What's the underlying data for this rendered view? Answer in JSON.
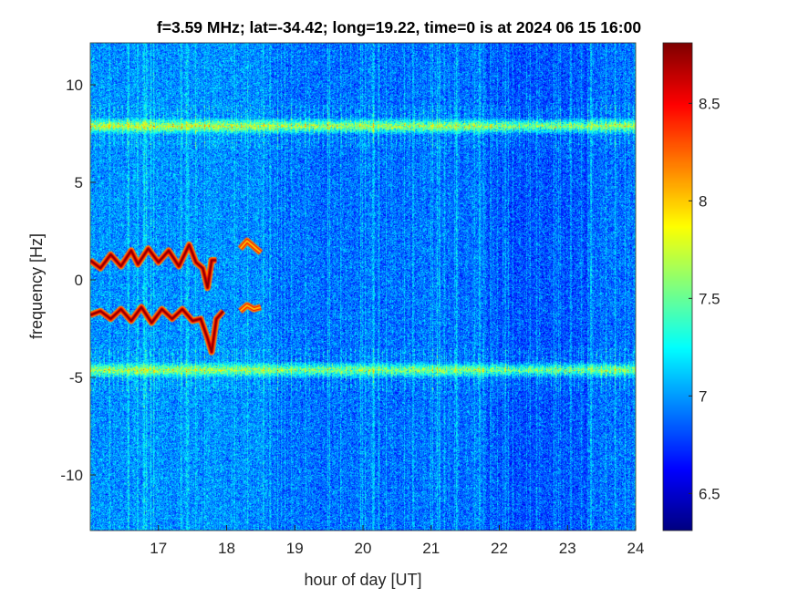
{
  "chart_data": {
    "type": "heatmap",
    "title": "f=3.59 MHz;  lat=-34.42; long=19.22, time=0 is at 2024 06 15 16:00",
    "xlabel": "hour of day [UT]",
    "ylabel": "frequency [Hz]",
    "xlim": [
      16,
      24
    ],
    "ylim": [
      -12.85,
      12.15
    ],
    "xticks": [
      17,
      18,
      19,
      20,
      21,
      22,
      23,
      24
    ],
    "yticks": [
      -10,
      -5,
      0,
      5,
      10
    ],
    "colorbar": {
      "clim": [
        6.31,
        8.81
      ],
      "ticks": [
        6.5,
        7,
        7.5,
        8,
        8.5
      ],
      "colormap": "jet"
    },
    "background_level": 6.9,
    "bands": [
      {
        "frequency": 7.9,
        "level": 7.8,
        "x_range": [
          16,
          24
        ]
      },
      {
        "frequency": -4.6,
        "level": 7.7,
        "x_range": [
          16,
          24
        ]
      }
    ],
    "traces": [
      {
        "name": "upper",
        "level": 8.8,
        "x": [
          16.0,
          16.15,
          16.3,
          16.45,
          16.6,
          16.7,
          16.85,
          17.0,
          17.15,
          17.3,
          17.45,
          17.55,
          17.65,
          17.72,
          17.78,
          17.85
        ],
        "y": [
          1.0,
          0.6,
          1.3,
          0.7,
          1.5,
          0.8,
          1.6,
          0.9,
          1.5,
          0.7,
          1.8,
          0.9,
          0.6,
          -0.4,
          1.0,
          1.0
        ]
      },
      {
        "name": "upper-late",
        "level": 8.0,
        "x": [
          18.2,
          18.3,
          18.4,
          18.5
        ],
        "y": [
          1.6,
          2.0,
          1.7,
          1.4
        ]
      },
      {
        "name": "lower",
        "level": 8.8,
        "x": [
          16.0,
          16.15,
          16.3,
          16.45,
          16.6,
          16.75,
          16.9,
          17.05,
          17.2,
          17.35,
          17.5,
          17.62,
          17.72,
          17.78,
          17.85,
          17.95
        ],
        "y": [
          -1.8,
          -1.6,
          -2.0,
          -1.5,
          -2.1,
          -1.4,
          -2.2,
          -1.5,
          -2.0,
          -1.5,
          -2.1,
          -2.0,
          -3.0,
          -3.7,
          -2.0,
          -1.6
        ]
      },
      {
        "name": "lower-late",
        "level": 8.0,
        "x": [
          18.2,
          18.3,
          18.4,
          18.5
        ],
        "y": [
          -1.6,
          -1.3,
          -1.5,
          -1.4
        ]
      }
    ]
  }
}
